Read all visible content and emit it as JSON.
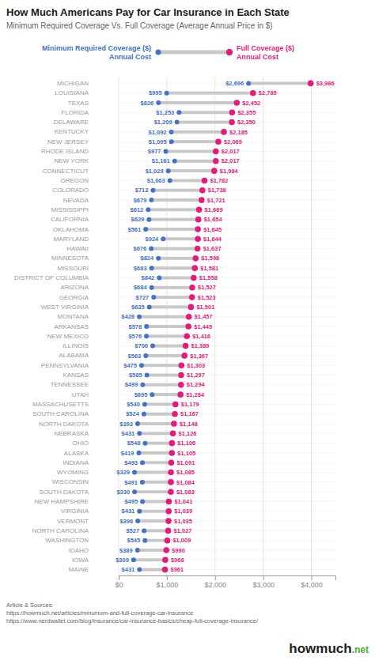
{
  "chart_data": {
    "type": "dumbbell",
    "title": "How Much Americans Pay for Car Insurance in Each State",
    "subtitle": "Minimum Required Coverage Vs. Full Coverage (Average Annual Price in $)",
    "orientation": "horizontal",
    "grid": true,
    "data_labels": true,
    "color": "#C8C8C8",
    "categories": [
      "MICHIGAN",
      "LOUISIANA",
      "TEXAS",
      "FLORIDA",
      "DELAWARE",
      "KENTUCKY",
      "NEW JERSEY",
      "RHODE ISLAND",
      "NEW YORK",
      "CONNECTICUT",
      "OREGON",
      "COLORADO",
      "NEVADA",
      "MISSISSIPPI",
      "CALIFORNIA",
      "OKLAHOMA",
      "MARYLAND",
      "HAWAII",
      "MINNESOTA",
      "MISSOURI",
      "DISTRICT OF COLUMBIA",
      "ARIZONA",
      "GEORGIA",
      "WEST VIRGINIA",
      "MONTANA",
      "ARKANSAS",
      "NEW MEXICO",
      "ILLINOIS",
      "ALABAMA",
      "PENNSYLVANIA",
      "KANSAS",
      "TENNESSEE",
      "UTAH",
      "MASSACHUSETTS",
      "SOUTH CAROLINA",
      "NORTH DAKOTA",
      "NEBRASKA",
      "OHIO",
      "ALASKA",
      "INDIANA",
      "WYOMING",
      "WISCONSIN",
      "SOUTH DAKOTA",
      "NEW HAMPSHIRE",
      "VIRGINIA",
      "VERMONT",
      "NORTH CAROLINA",
      "WASHINGTON",
      "IDAHO",
      "IOWA",
      "MAINE"
    ],
    "series": [
      {
        "name": "Minimum Required Coverage ($)\nAnnual Cost",
        "color": "#4472C4",
        "values": [
          2696,
          995,
          826,
          1253,
          1209,
          1092,
          1095,
          977,
          1161,
          1029,
          1063,
          713,
          679,
          612,
          629,
          561,
          924,
          676,
          824,
          683,
          842,
          684,
          727,
          635,
          428,
          578,
          576,
          706,
          563,
          475,
          585,
          499,
          695,
          540,
          524,
          393,
          431,
          548,
          419,
          493,
          329,
          491,
          330,
          495,
          431,
          396,
          527,
          545,
          389,
          309,
          431
        ],
        "value_labels": [
          "$2,696",
          "$995",
          "$826",
          "$1,253",
          "$1,209",
          "$1,092",
          "$1,095",
          "$977",
          "$1,161",
          "$1,029",
          "$1,063",
          "$713",
          "$679",
          "$612",
          "$629",
          "$561",
          "$924",
          "$676",
          "$824",
          "$683",
          "$842",
          "$684",
          "$727",
          "$635",
          "$428",
          "$578",
          "$576",
          "$706",
          "$563",
          "$475",
          "$585",
          "$499",
          "$695",
          "$540",
          "$524",
          "$393",
          "$431",
          "$548",
          "$419",
          "$493",
          "$329",
          "$491",
          "$330",
          "$495",
          "$431",
          "$396",
          "$527",
          "$545",
          "$389",
          "$309",
          "$431"
        ]
      },
      {
        "name": "Full Coverage ($)\nAnnual Cost",
        "color": "#E8197D",
        "values": [
          3986,
          2789,
          2452,
          2355,
          2350,
          2185,
          2069,
          2017,
          2017,
          1984,
          1782,
          1738,
          1721,
          1669,
          1654,
          1645,
          1644,
          1637,
          1598,
          1581,
          1558,
          1527,
          1523,
          1501,
          1457,
          1449,
          1416,
          1389,
          1367,
          1303,
          1297,
          1294,
          1284,
          1179,
          1167,
          1148,
          1126,
          1106,
          1105,
          1091,
          1085,
          1084,
          1083,
          1041,
          1039,
          1035,
          1027,
          1009,
          990,
          968,
          961
        ],
        "value_labels": [
          "$3,986",
          "$2,789",
          "$2,452",
          "$2,355",
          "$2,350",
          "$2,185",
          "$2,069",
          "$2,017",
          "$2,017",
          "$1,984",
          "$1,782",
          "$1,738",
          "$1,721",
          "$1,669",
          "$1,654",
          "$1,645",
          "$1,644",
          "$1,637",
          "$1,598",
          "$1,581",
          "$1,558",
          "$1,527",
          "$1,523",
          "$1,501",
          "$1,457",
          "$1,449",
          "$1,416",
          "$1,389",
          "$1,367",
          "$1,303",
          "$1,297",
          "$1,294",
          "$1,284",
          "$1,179",
          "$1,167",
          "$1,148",
          "$1,126",
          "$1,106",
          "$1,105",
          "$1,091",
          "$1,085",
          "$1,084",
          "$1,083",
          "$1,041",
          "$1,039",
          "$1,035",
          "$1,027",
          "$1,009",
          "$990",
          "$968",
          "$961"
        ]
      }
    ],
    "xlim": [
      0,
      4500
    ],
    "xticks": [
      {
        "value": 0,
        "label": "$0"
      },
      {
        "value": 1000,
        "label": "$1,000"
      },
      {
        "value": 2000,
        "label": "$2,000"
      },
      {
        "value": 3000,
        "label": "$3,000"
      },
      {
        "value": 4000,
        "label": "$4,000"
      }
    ],
    "annotations": [
      "Article & Sources:\nhttps://howmuch.net/articles/minumum-and-full-coverage-car-insurance\nhttps://www.nerdwallet.com/blog/insurance/car-insurance-basics/cheap-full-coverage-insurance/",
      "howmuch",
      ".net"
    ]
  }
}
